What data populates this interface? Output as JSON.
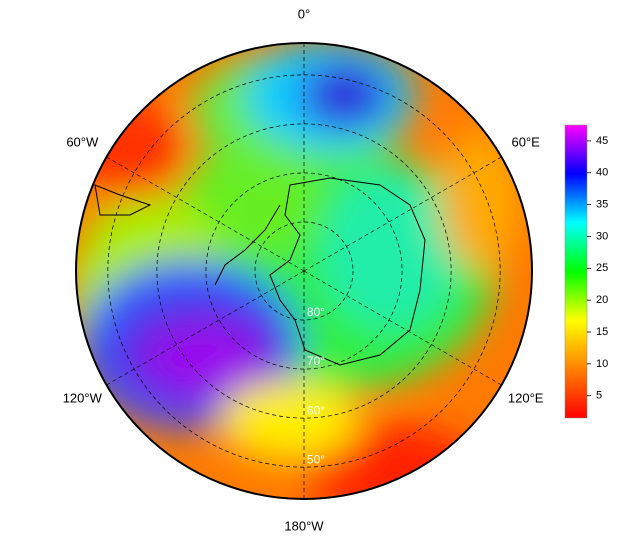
{
  "chart_data": {
    "type": "polar-map",
    "lat_limits": [
      90,
      43.5
    ],
    "lon_ticks": [
      {
        "value": 0,
        "label": "0°"
      },
      {
        "value": 60,
        "label": "60°E"
      },
      {
        "value": 120,
        "label": "120°E"
      },
      {
        "value": 180,
        "label": "180°W"
      },
      {
        "value": -120,
        "label": "120°W"
      },
      {
        "value": -60,
        "label": "60°W"
      }
    ],
    "lat_ticks": [
      {
        "value": 80,
        "label": "80°"
      },
      {
        "value": 70,
        "label": "70°"
      },
      {
        "value": 60,
        "label": "60°"
      },
      {
        "value": 50,
        "label": "50°"
      }
    ],
    "colorbar_lim": [
      1.5,
      47.5
    ],
    "colorbar_ticks": [
      5,
      10,
      15,
      20,
      25,
      30,
      35,
      40,
      45
    ],
    "colormap": [
      "#ff0000",
      "#ff8000",
      "#ffff00",
      "#00ff00",
      "#00ffff",
      "#0000ff",
      "#ff00ff"
    ]
  }
}
